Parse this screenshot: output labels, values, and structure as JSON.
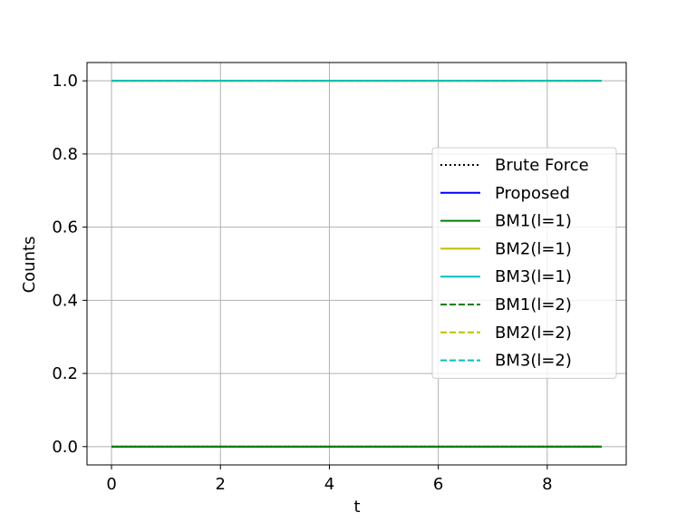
{
  "chart_data": {
    "type": "line",
    "xlabel": "t",
    "ylabel": "Counts",
    "xlim": [
      -0.45,
      9.45
    ],
    "ylim": [
      -0.05,
      1.05
    ],
    "xticks": [
      0,
      2,
      4,
      6,
      8
    ],
    "xtick_labels": [
      "0",
      "2",
      "4",
      "6",
      "8"
    ],
    "yticks": [
      0.0,
      0.2,
      0.4,
      0.6,
      0.8,
      1.0
    ],
    "ytick_labels": [
      "0.0",
      "0.2",
      "0.4",
      "0.6",
      "0.8",
      "1.0"
    ],
    "grid": true,
    "legend_position": "center-right",
    "x": [
      0,
      1,
      2,
      3,
      4,
      5,
      6,
      7,
      8,
      9
    ],
    "series": [
      {
        "name": "Brute Force",
        "color": "#000000",
        "style": "dotted",
        "values": [
          0,
          0,
          0,
          0,
          0,
          0,
          0,
          0,
          0,
          0
        ]
      },
      {
        "name": "Proposed",
        "color": "#0000ff",
        "style": "solid",
        "values": [
          0,
          0,
          0,
          0,
          0,
          0,
          0,
          0,
          0,
          0
        ]
      },
      {
        "name": "BM1(l=1)",
        "color": "#008000",
        "style": "solid",
        "values": [
          0,
          0,
          0,
          0,
          0,
          0,
          0,
          0,
          0,
          0
        ]
      },
      {
        "name": "BM2(l=1)",
        "color": "#bfbf00",
        "style": "solid",
        "values": [
          1,
          1,
          1,
          1,
          1,
          1,
          1,
          1,
          1,
          1
        ]
      },
      {
        "name": "BM3(l=1)",
        "color": "#00bfbf",
        "style": "solid",
        "values": [
          1,
          1,
          1,
          1,
          1,
          1,
          1,
          1,
          1,
          1
        ]
      },
      {
        "name": "BM1(l=2)",
        "color": "#008000",
        "style": "dashed",
        "values": [
          0,
          0,
          0,
          0,
          0,
          0,
          0,
          0,
          0,
          0
        ]
      },
      {
        "name": "BM2(l=2)",
        "color": "#bfbf00",
        "style": "dashed",
        "values": [
          1,
          1,
          1,
          1,
          1,
          1,
          1,
          1,
          1,
          1
        ]
      },
      {
        "name": "BM3(l=2)",
        "color": "#00bfbf",
        "style": "dashed",
        "values": [
          1,
          1,
          1,
          1,
          1,
          1,
          1,
          1,
          1,
          1
        ]
      }
    ]
  }
}
